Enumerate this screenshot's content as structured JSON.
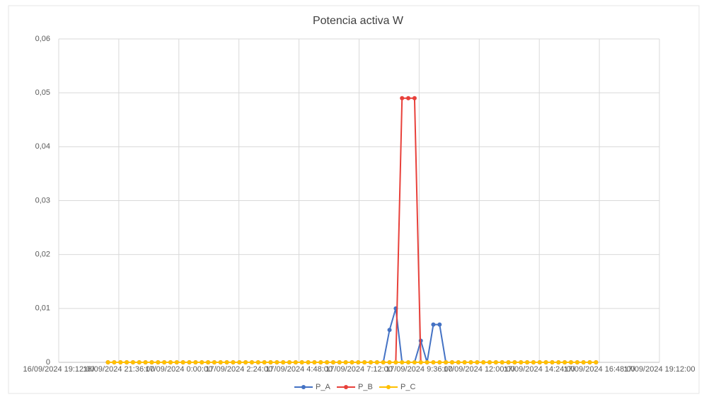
{
  "chart_data": {
    "type": "line",
    "title": "Potencia activa W",
    "x": [
      "16/09/2024 21:10:00",
      "16/09/2024 21:25:00",
      "16/09/2024 21:40:00",
      "16/09/2024 21:55:00",
      "16/09/2024 22:10:00",
      "16/09/2024 22:25:00",
      "16/09/2024 22:40:00",
      "16/09/2024 22:55:00",
      "16/09/2024 23:10:00",
      "16/09/2024 23:25:00",
      "16/09/2024 23:40:00",
      "16/09/2024 23:55:00",
      "17/09/2024 0:10:00",
      "17/09/2024 0:25:00",
      "17/09/2024 0:40:00",
      "17/09/2024 0:55:00",
      "17/09/2024 1:10:00",
      "17/09/2024 1:25:00",
      "17/09/2024 1:40:00",
      "17/09/2024 1:55:00",
      "17/09/2024 2:10:00",
      "17/09/2024 2:25:00",
      "17/09/2024 2:40:00",
      "17/09/2024 2:55:00",
      "17/09/2024 3:10:00",
      "17/09/2024 3:25:00",
      "17/09/2024 3:40:00",
      "17/09/2024 3:55:00",
      "17/09/2024 4:10:00",
      "17/09/2024 4:25:00",
      "17/09/2024 4:40:00",
      "17/09/2024 4:55:00",
      "17/09/2024 5:10:00",
      "17/09/2024 5:25:00",
      "17/09/2024 5:40:00",
      "17/09/2024 5:55:00",
      "17/09/2024 6:10:00",
      "17/09/2024 6:25:00",
      "17/09/2024 6:40:00",
      "17/09/2024 6:55:00",
      "17/09/2024 7:10:00",
      "17/09/2024 7:25:00",
      "17/09/2024 7:40:00",
      "17/09/2024 7:55:00",
      "17/09/2024 8:10:00",
      "17/09/2024 8:25:00",
      "17/09/2024 8:40:00",
      "17/09/2024 8:55:00",
      "17/09/2024 9:10:00",
      "17/09/2024 9:25:00",
      "17/09/2024 9:40:00",
      "17/09/2024 9:55:00",
      "17/09/2024 10:10:00",
      "17/09/2024 10:25:00",
      "17/09/2024 10:40:00",
      "17/09/2024 10:55:00",
      "17/09/2024 11:10:00",
      "17/09/2024 11:25:00",
      "17/09/2024 11:40:00",
      "17/09/2024 11:55:00",
      "17/09/2024 12:10:00",
      "17/09/2024 12:25:00",
      "17/09/2024 12:40:00",
      "17/09/2024 12:55:00",
      "17/09/2024 13:10:00",
      "17/09/2024 13:25:00",
      "17/09/2024 13:40:00",
      "17/09/2024 13:55:00",
      "17/09/2024 14:10:00",
      "17/09/2024 14:25:00",
      "17/09/2024 14:40:00",
      "17/09/2024 14:55:00",
      "17/09/2024 15:10:00",
      "17/09/2024 15:25:00",
      "17/09/2024 15:40:00",
      "17/09/2024 15:55:00",
      "17/09/2024 16:10:00",
      "17/09/2024 16:25:00",
      "17/09/2024 16:40:00"
    ],
    "series": [
      {
        "name": "P_A",
        "color": "#4472c4",
        "values": [
          0,
          0,
          0,
          0,
          0,
          0,
          0,
          0,
          0,
          0,
          0,
          0,
          0,
          0,
          0,
          0,
          0,
          0,
          0,
          0,
          0,
          0,
          0,
          0,
          0,
          0,
          0,
          0,
          0,
          0,
          0,
          0,
          0,
          0,
          0,
          0,
          0,
          0,
          0,
          0,
          0,
          0,
          0,
          0,
          0,
          0.006,
          0.01,
          0,
          0,
          0,
          0.004,
          0,
          0.007,
          0.007,
          0,
          0,
          0,
          0,
          0,
          0,
          0,
          0,
          0,
          0,
          0,
          0,
          0,
          0,
          0,
          0,
          0,
          0,
          0,
          0,
          0,
          0,
          0,
          0,
          0
        ]
      },
      {
        "name": "P_B",
        "color": "#e8403a",
        "values": [
          0,
          0,
          0,
          0,
          0,
          0,
          0,
          0,
          0,
          0,
          0,
          0,
          0,
          0,
          0,
          0,
          0,
          0,
          0,
          0,
          0,
          0,
          0,
          0,
          0,
          0,
          0,
          0,
          0,
          0,
          0,
          0,
          0,
          0,
          0,
          0,
          0,
          0,
          0,
          0,
          0,
          0,
          0,
          0,
          0,
          0,
          0,
          0.049,
          0.049,
          0.049,
          0,
          0,
          0,
          0,
          0,
          0,
          0,
          0,
          0,
          0,
          0,
          0,
          0,
          0,
          0,
          0,
          0,
          0,
          0,
          0,
          0,
          0,
          0,
          0,
          0,
          0,
          0,
          0,
          0
        ]
      },
      {
        "name": "P_C",
        "color": "#ffc000",
        "values": [
          0,
          0,
          0,
          0,
          0,
          0,
          0,
          0,
          0,
          0,
          0,
          0,
          0,
          0,
          0,
          0,
          0,
          0,
          0,
          0,
          0,
          0,
          0,
          0,
          0,
          0,
          0,
          0,
          0,
          0,
          0,
          0,
          0,
          0,
          0,
          0,
          0,
          0,
          0,
          0,
          0,
          0,
          0,
          0,
          0,
          0,
          0,
          0,
          0,
          0,
          0,
          0,
          0,
          0,
          0,
          0,
          0,
          0,
          0,
          0,
          0,
          0,
          0,
          0,
          0,
          0,
          0,
          0,
          0,
          0,
          0,
          0,
          0,
          0,
          0,
          0,
          0,
          0,
          0
        ]
      }
    ],
    "xlim": [
      "16/09/2024 19:12:00",
      "17/09/2024 19:12:00"
    ],
    "xticks": [
      "16/09/2024 19:12:00",
      "16/09/2024 21:36:00",
      "17/09/2024 0:00:00",
      "17/09/2024 2:24:00",
      "17/09/2024 4:48:00",
      "17/09/2024 7:12:00",
      "17/09/2024 9:36:00",
      "17/09/2024 12:00:00",
      "17/09/2024 14:24:00",
      "17/09/2024 16:48:00",
      "17/09/2024 19:12:00"
    ],
    "ylim": [
      0,
      0.06
    ],
    "yticks": [
      0,
      {
        "value": 0.01,
        "label": "0,01"
      },
      {
        "value": 0.02,
        "label": "0,02"
      },
      {
        "value": 0.03,
        "label": "0,03"
      },
      {
        "value": 0.04,
        "label": "0,04"
      },
      {
        "value": 0.05,
        "label": "0,05"
      },
      {
        "value": 0.06,
        "label": "0,06"
      }
    ],
    "grid": true,
    "legend": "bottom"
  }
}
